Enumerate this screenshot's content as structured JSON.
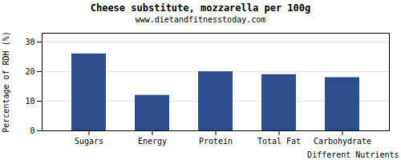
{
  "chart_data": {
    "type": "bar",
    "title": "Cheese substitute, mozzarella per 100g",
    "subtitle": "www.dietandfitnesstoday.com",
    "xlabel": "Different Nutrients",
    "ylabel": "Percentage of RDH (%)",
    "categories": [
      "Sugars",
      "Energy",
      "Protein",
      "Total Fat",
      "Carbohydrate"
    ],
    "values": [
      26,
      12,
      20,
      19,
      18
    ],
    "color": "#2e4d8e",
    "ylim": [
      0,
      33
    ],
    "yticks": [
      0,
      10,
      20,
      30
    ],
    "grid": true
  }
}
